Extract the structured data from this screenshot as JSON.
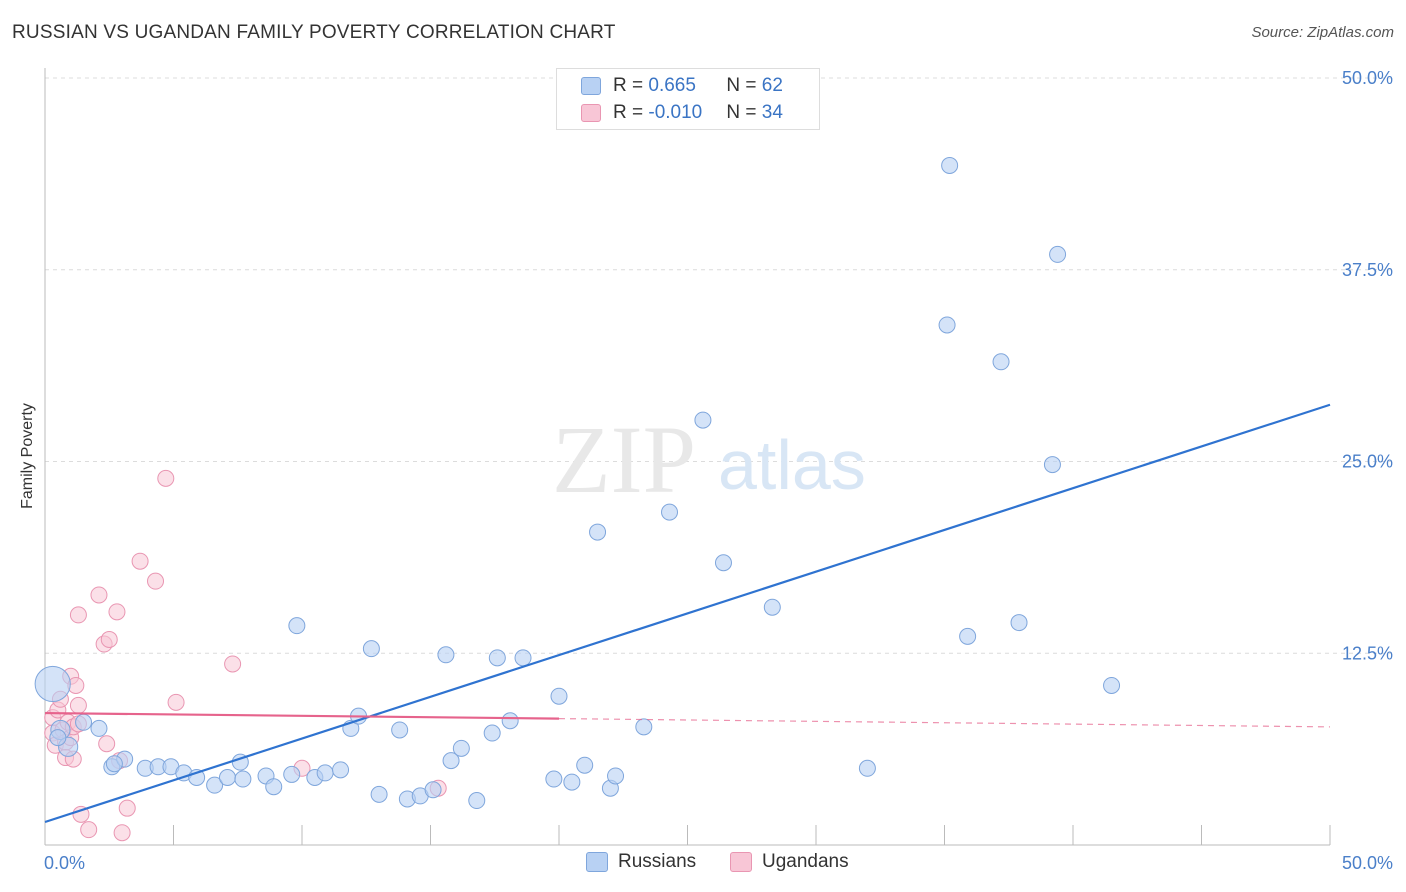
{
  "title": "RUSSIAN VS UGANDAN FAMILY POVERTY CORRELATION CHART",
  "source": "Source: ZipAtlas.com",
  "watermark": {
    "zip": "ZIP",
    "atlas": "atlas"
  },
  "legend": {
    "rows": [
      {
        "r_label": "R = ",
        "r_value": "0.665",
        "n_label": "N = ",
        "n_value": "62"
      },
      {
        "r_label": "R = ",
        "r_value": "-0.010",
        "n_label": "N = ",
        "n_value": "34"
      }
    ]
  },
  "bottom_legend": {
    "russians": "Russians",
    "ugandans": "Ugandans"
  },
  "colors": {
    "russians_fill": "#b8d1f3",
    "russians_stroke": "#7fa6dc",
    "russians_line": "#2f73d0",
    "ugandans_fill": "#f8c6d6",
    "ugandans_stroke": "#e996b2",
    "ugandans_line": "#e6638c",
    "axis_text": "#4a7fc9",
    "grid": "#dcdcdc"
  },
  "chart_data": {
    "type": "scatter",
    "xlabel": "",
    "ylabel": "Family Poverty",
    "xlim": [
      0,
      50
    ],
    "ylim": [
      0,
      50
    ],
    "x_tick_labels": [
      "0.0%",
      "50.0%"
    ],
    "y_ticks": [
      12.5,
      25.0,
      37.5,
      50.0
    ],
    "y_tick_labels": [
      "12.5%",
      "25.0%",
      "37.5%",
      "50.0%"
    ],
    "grid": true,
    "legend_position": "top-center",
    "series": [
      {
        "name": "Russians",
        "r": 0.665,
        "n": 62,
        "trend": {
          "x": [
            0,
            50
          ],
          "y": [
            1.5,
            28.7
          ],
          "solid_to": 50
        },
        "points": [
          [
            0.3,
            10.5,
            2.2
          ],
          [
            0.6,
            7.5,
            1.2
          ],
          [
            0.9,
            6.4,
            1.2
          ],
          [
            2.1,
            7.6,
            1.0
          ],
          [
            2.6,
            5.1,
            1.0
          ],
          [
            3.1,
            5.6,
            1.0
          ],
          [
            3.9,
            5.0,
            1.0
          ],
          [
            4.4,
            5.1,
            1.0
          ],
          [
            4.9,
            5.1,
            1.0
          ],
          [
            5.4,
            4.7,
            1.0
          ],
          [
            5.9,
            4.4,
            1.0
          ],
          [
            6.6,
            3.9,
            1.0
          ],
          [
            7.1,
            4.4,
            1.0
          ],
          [
            7.6,
            5.4,
            1.0
          ],
          [
            7.7,
            4.3,
            1.0
          ],
          [
            8.6,
            4.5,
            1.0
          ],
          [
            8.9,
            3.8,
            1.0
          ],
          [
            9.6,
            4.6,
            1.0
          ],
          [
            9.8,
            14.3,
            1.0
          ],
          [
            10.5,
            4.4,
            1.0
          ],
          [
            10.9,
            4.7,
            1.0
          ],
          [
            11.5,
            4.9,
            1.0
          ],
          [
            11.9,
            7.6,
            1.0
          ],
          [
            12.2,
            8.4,
            1.0
          ],
          [
            12.7,
            12.8,
            1.0
          ],
          [
            13.0,
            3.3,
            1.0
          ],
          [
            13.8,
            7.5,
            1.0
          ],
          [
            14.1,
            3.0,
            1.0
          ],
          [
            14.6,
            3.2,
            1.0
          ],
          [
            15.1,
            3.6,
            1.0
          ],
          [
            15.6,
            12.4,
            1.0
          ],
          [
            15.8,
            5.5,
            1.0
          ],
          [
            16.2,
            6.3,
            1.0
          ],
          [
            16.8,
            2.9,
            1.0
          ],
          [
            17.4,
            7.3,
            1.0
          ],
          [
            17.6,
            12.2,
            1.0
          ],
          [
            18.1,
            8.1,
            1.0
          ],
          [
            18.6,
            12.2,
            1.0
          ],
          [
            20.0,
            9.7,
            1.0
          ],
          [
            19.8,
            4.3,
            1.0
          ],
          [
            20.5,
            4.1,
            1.0
          ],
          [
            21.0,
            5.2,
            1.0
          ],
          [
            21.5,
            20.4,
            1.0
          ],
          [
            22.0,
            3.7,
            1.0
          ],
          [
            22.2,
            4.5,
            1.0
          ],
          [
            23.3,
            7.7,
            1.0
          ],
          [
            24.3,
            21.7,
            1.0
          ],
          [
            25.6,
            27.7,
            1.0
          ],
          [
            26.4,
            18.4,
            1.0
          ],
          [
            28.3,
            15.5,
            1.0
          ],
          [
            32.0,
            5.0,
            1.0
          ],
          [
            35.2,
            44.3,
            1.0
          ],
          [
            35.1,
            33.9,
            1.0
          ],
          [
            35.9,
            13.6,
            1.0
          ],
          [
            37.2,
            31.5,
            1.0
          ],
          [
            37.9,
            14.5,
            1.0
          ],
          [
            39.2,
            24.8,
            1.0
          ],
          [
            39.4,
            38.5,
            1.0
          ],
          [
            41.5,
            10.4,
            1.0
          ],
          [
            1.5,
            8.0,
            1.0
          ],
          [
            2.7,
            5.3,
            1.0
          ],
          [
            0.5,
            7.0,
            1.0
          ]
        ]
      },
      {
        "name": "Ugandans",
        "r": -0.01,
        "n": 34,
        "trend": {
          "x": [
            0,
            50
          ],
          "y": [
            8.6,
            7.7
          ],
          "solid_to": 20
        },
        "points": [
          [
            0.3,
            8.3,
            1.0
          ],
          [
            0.3,
            7.3,
            1.0
          ],
          [
            0.4,
            6.5,
            1.0
          ],
          [
            0.5,
            8.8,
            1.0
          ],
          [
            0.6,
            9.5,
            1.0
          ],
          [
            0.7,
            7.5,
            1.0
          ],
          [
            0.8,
            6.7,
            1.0
          ],
          [
            0.8,
            5.7,
            1.0
          ],
          [
            0.9,
            8.0,
            1.0
          ],
          [
            1.0,
            11.0,
            1.0
          ],
          [
            1.0,
            7.0,
            1.0
          ],
          [
            1.1,
            7.7,
            1.0
          ],
          [
            1.1,
            5.6,
            1.0
          ],
          [
            1.2,
            10.4,
            1.0
          ],
          [
            1.3,
            7.9,
            1.0
          ],
          [
            1.3,
            9.1,
            1.0
          ],
          [
            1.4,
            2.0,
            1.0
          ],
          [
            1.7,
            1.0,
            1.0
          ],
          [
            1.3,
            15.0,
            1.0
          ],
          [
            2.1,
            16.3,
            1.0
          ],
          [
            2.3,
            13.1,
            1.0
          ],
          [
            2.5,
            13.4,
            1.0
          ],
          [
            2.8,
            15.2,
            1.0
          ],
          [
            3.0,
            0.8,
            1.0
          ],
          [
            2.4,
            6.6,
            1.0
          ],
          [
            3.2,
            2.4,
            1.0
          ],
          [
            3.7,
            18.5,
            1.0
          ],
          [
            4.3,
            17.2,
            1.0
          ],
          [
            4.7,
            23.9,
            1.0
          ],
          [
            5.1,
            9.3,
            1.0
          ],
          [
            7.3,
            11.8,
            1.0
          ],
          [
            10.0,
            5.0,
            1.0
          ],
          [
            15.3,
            3.7,
            1.0
          ],
          [
            2.9,
            5.5,
            1.0
          ]
        ]
      }
    ]
  }
}
